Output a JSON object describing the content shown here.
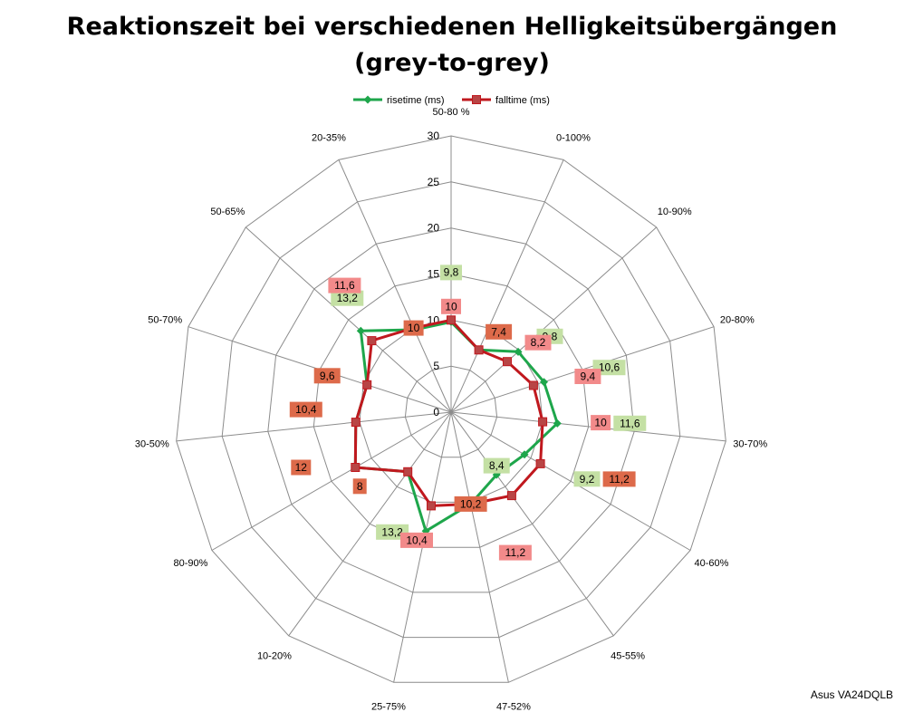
{
  "chart_data": {
    "type": "radar",
    "title_line1": "Reaktionszeit bei verschiedenen Helligkeitsübergängen",
    "title_line2": "(grey-to-grey)",
    "categories": [
      "50-80 %",
      "0-100%",
      "10-90%",
      "20-80%",
      "30-70%",
      "40-60%",
      "45-55%",
      "47-52%",
      "25-75%",
      "10-20%",
      "80-90%",
      "30-50%",
      "50-70%",
      "50-65%",
      "20-35%"
    ],
    "rlim": [
      0,
      30
    ],
    "rticks": [
      "0",
      "5",
      "10",
      "15",
      "20",
      "25",
      "30"
    ],
    "rtick_values": [
      0,
      5,
      10,
      15,
      20,
      25,
      30
    ],
    "grid": true,
    "legend_position": "top",
    "series": [
      {
        "name": "risetime (ms)",
        "color": "#1ea64b",
        "marker": "diamond",
        "values": [
          9.8,
          7.4,
          9.8,
          10.6,
          11.6,
          9.2,
          8.4,
          10.2,
          13.2,
          8,
          12,
          10.4,
          9.6,
          13.2,
          9.8
        ],
        "labels": [
          "9,8",
          "",
          "9,8",
          "10,6",
          "11,6",
          "9,2",
          "8,4",
          "",
          "13,2",
          "",
          "",
          "",
          "",
          "13,2",
          ""
        ]
      },
      {
        "name": "falltime (ms)",
        "color": "#c0181e",
        "marker": "square",
        "values": [
          10,
          7.4,
          8.2,
          9.4,
          10,
          11.2,
          11.2,
          10.2,
          10.4,
          8,
          12,
          10.4,
          9.6,
          11.6,
          10
        ],
        "labels": [
          "10",
          "7,4",
          "8,2",
          "9,4",
          "10",
          "11,2",
          "11,2",
          "10,2",
          "10,4",
          "8",
          "12",
          "10,4",
          "9,6",
          "11,6",
          "10"
        ]
      }
    ]
  },
  "footer": {
    "credit": "Asus VA24DQLB"
  },
  "colors": {
    "grid": "#8c8c8c",
    "label_green": "#c4e0a4",
    "label_pink": "#f28a8a",
    "label_orange": "#dd6a4a"
  }
}
